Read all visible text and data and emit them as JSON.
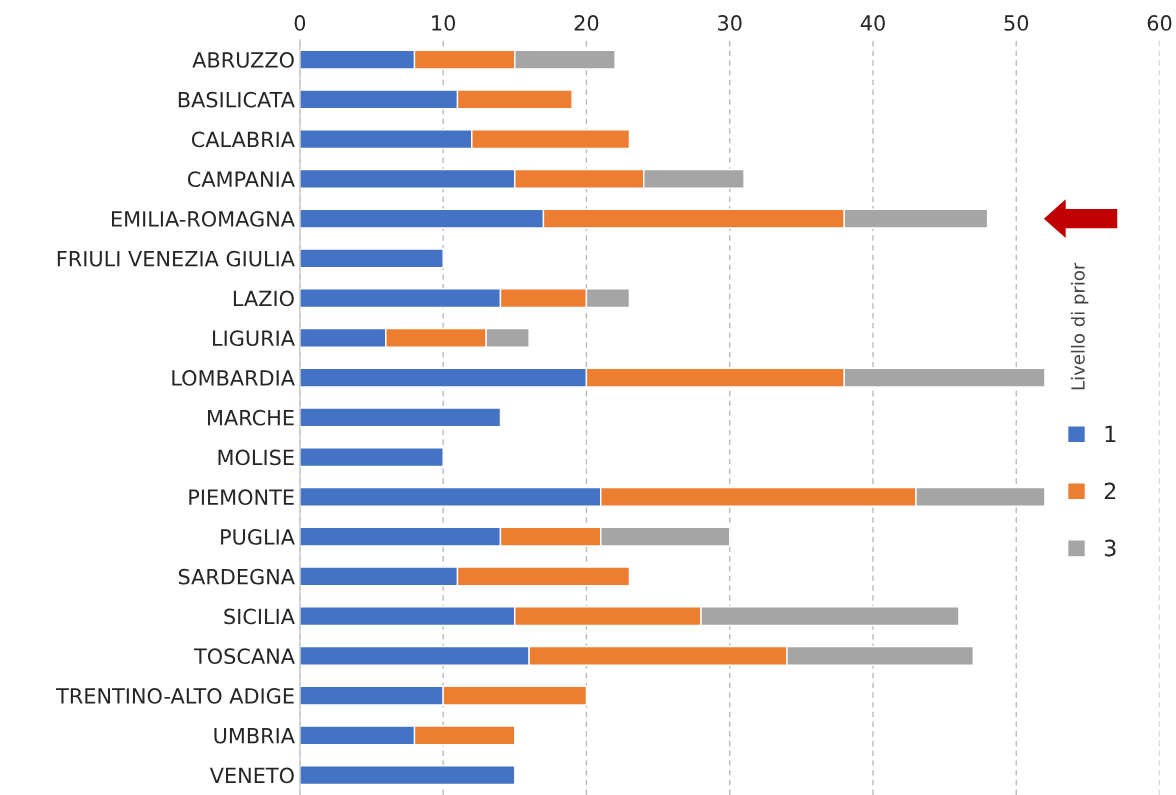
{
  "chart_data": {
    "type": "bar",
    "orientation": "horizontal",
    "stacked": true,
    "categories": [
      "ABRUZZO",
      "BASILICATA",
      "CALABRIA",
      "CAMPANIA",
      "EMILIA-ROMAGNA",
      "FRIULI VENEZIA GIULIA",
      "LAZIO",
      "LIGURIA",
      "LOMBARDIA",
      "MARCHE",
      "MOLISE",
      "PIEMONTE",
      "PUGLIA",
      "SARDEGNA",
      "SICILIA",
      "TOSCANA",
      "TRENTINO-ALTO ADIGE",
      "UMBRIA",
      "VENETO"
    ],
    "series": [
      {
        "name": "1",
        "color": "#4472c4",
        "values": [
          8,
          11,
          12,
          15,
          17,
          10,
          14,
          6,
          20,
          14,
          10,
          21,
          14,
          11,
          15,
          16,
          10,
          8,
          15
        ]
      },
      {
        "name": "2",
        "color": "#ed7d31",
        "values": [
          7,
          8,
          11,
          9,
          21,
          null,
          6,
          7,
          18,
          null,
          null,
          22,
          7,
          12,
          13,
          18,
          10,
          7,
          null
        ]
      },
      {
        "name": "3",
        "color": "#a5a5a5",
        "values": [
          7,
          null,
          null,
          7,
          10,
          null,
          3,
          3,
          14,
          null,
          null,
          9,
          9,
          null,
          18,
          13,
          null,
          null,
          null
        ]
      }
    ],
    "xlim": [
      0,
      60
    ],
    "xticks": [
      0,
      10,
      20,
      30,
      40,
      50,
      60
    ],
    "grid": "x",
    "legend": "right",
    "legend_title": "Livello di prior"
  }
}
